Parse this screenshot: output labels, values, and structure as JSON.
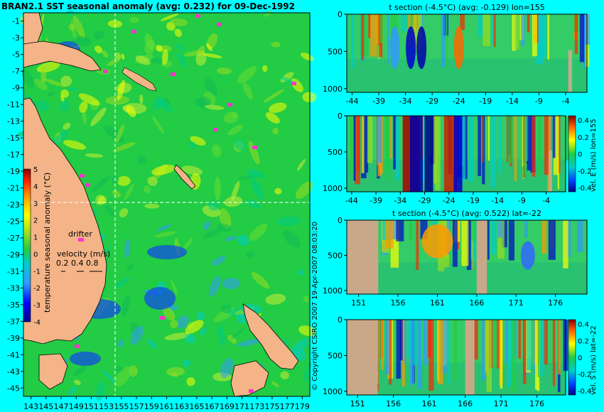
{
  "header": {
    "main_title": "BRAN2.1 SST seasonal anomaly (avg: 0.232) for 09-Dec-1992",
    "copyright": "© Copyright CSIRO 2007  19-Apr-2007 08:03:20"
  },
  "legend": {
    "colorbar_label": "temperature seasonal anomaly (°C)",
    "colorbar_ticks": [
      "5",
      "4",
      "3",
      "2",
      "1",
      "0",
      "-1",
      "-2",
      "-3",
      "-4"
    ],
    "drifter_label": "drifter",
    "velocity_label": "velocity (m/s)",
    "velocity_values": "0.2 0.4 0.8"
  },
  "colors": {
    "background": "#00ffff",
    "land": "#f4b488",
    "section_land": "#c8a888",
    "drifter": "#ff33cc",
    "ocean_base": "#22cc44"
  },
  "chart_data": [
    {
      "type": "heatmap",
      "id": "map",
      "title": "BRAN2.1 SST seasonal anomaly (avg: 0.232) for 09-Dec-1992",
      "x_ticks": [
        "143",
        "145",
        "147",
        "149",
        "151",
        "153",
        "155",
        "157",
        "159",
        "161",
        "163",
        "165",
        "167",
        "169",
        "171",
        "173",
        "175",
        "177",
        "179"
      ],
      "y_ticks": [
        "-1",
        "-3",
        "-5",
        "-7",
        "-9",
        "-11",
        "-13",
        "-15",
        "-17",
        "-19",
        "-21",
        "-23",
        "-25",
        "-27",
        "-29",
        "-31",
        "-33",
        "-35",
        "-37",
        "-39",
        "-41",
        "-43",
        "-45"
      ],
      "xlim": [
        142,
        180
      ],
      "ylim": [
        -46,
        0
      ],
      "crosshair_lon": 155,
      "crosshair_lat": -22,
      "zlim": [
        -4,
        5
      ]
    },
    {
      "type": "heatmap",
      "id": "section1",
      "title": "t section (-4.5°C) (avg: -0.129) lon=155",
      "x_ticks": [
        "-44",
        "-39",
        "-34",
        "-29",
        "-24",
        "-19",
        "-14",
        "-9",
        "-4"
      ],
      "y_ticks": [
        "0",
        "500",
        "1000"
      ],
      "xlim": [
        -45,
        0
      ],
      "ylim": [
        0,
        1050
      ]
    },
    {
      "type": "heatmap",
      "id": "section2",
      "title": "",
      "x_ticks": [
        "-44",
        "-39",
        "-34",
        "-29",
        "-24",
        "-19",
        "-14",
        "-9",
        "-4"
      ],
      "y_ticks": [
        "0",
        "500",
        "1000"
      ],
      "xlim": [
        -45,
        0
      ],
      "ylim": [
        0,
        1050
      ],
      "colorbar_label": "vel. E (m/s) lon=155",
      "colorbar_ticks": [
        "0.4",
        "0.2",
        "0",
        "-0.2",
        "-0.4"
      ]
    },
    {
      "type": "heatmap",
      "id": "section3",
      "title": "t section (-4.5°C) (avg: 0.522) lat=-22",
      "x_ticks": [
        "151",
        "156",
        "161",
        "166",
        "171",
        "176"
      ],
      "y_ticks": [
        "0",
        "500",
        "1000"
      ],
      "xlim": [
        149.5,
        180
      ],
      "ylim": [
        0,
        1050
      ]
    },
    {
      "type": "heatmap",
      "id": "section4",
      "title": "",
      "x_ticks": [
        "151",
        "156",
        "161",
        "166",
        "171",
        "176"
      ],
      "y_ticks": [
        "0",
        "500",
        "1000"
      ],
      "xlim": [
        149.5,
        180
      ],
      "ylim": [
        0,
        1050
      ],
      "colorbar_label": "vel. S (m/s) lat=-22",
      "colorbar_ticks": [
        "0.4",
        "0.2",
        "0",
        "-0.2",
        "-0.4"
      ]
    }
  ]
}
